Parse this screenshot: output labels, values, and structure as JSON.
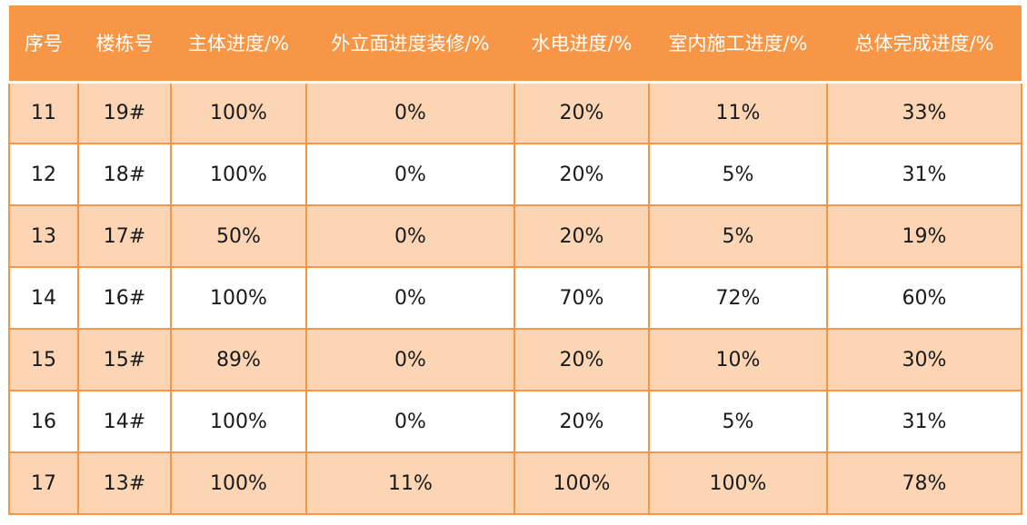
{
  "table": {
    "headers": [
      "序号",
      "楼栋号",
      "主体进度/%",
      "外立面进度装修/%",
      "水电进度/%",
      "室内施工进度/%",
      "总体完成进度/%"
    ],
    "rows": [
      [
        "11",
        "19#",
        "100%",
        "0%",
        "20%",
        "11%",
        "33%"
      ],
      [
        "12",
        "18#",
        "100%",
        "0%",
        "20%",
        "5%",
        "31%"
      ],
      [
        "13",
        "17#",
        "50%",
        "0%",
        "20%",
        "5%",
        "19%"
      ],
      [
        "14",
        "16#",
        "100%",
        "0%",
        "70%",
        "72%",
        "60%"
      ],
      [
        "15",
        "15#",
        "89%",
        "0%",
        "20%",
        "10%",
        "30%"
      ],
      [
        "16",
        "14#",
        "100%",
        "0%",
        "20%",
        "5%",
        "31%"
      ],
      [
        "17",
        "13#",
        "100%",
        "11%",
        "100%",
        "100%",
        "78%"
      ]
    ]
  },
  "colors": {
    "header_bg": "#f79646",
    "header_text": "#ffffff",
    "band_bg": "#fcd5b4",
    "border": "#f79646"
  }
}
